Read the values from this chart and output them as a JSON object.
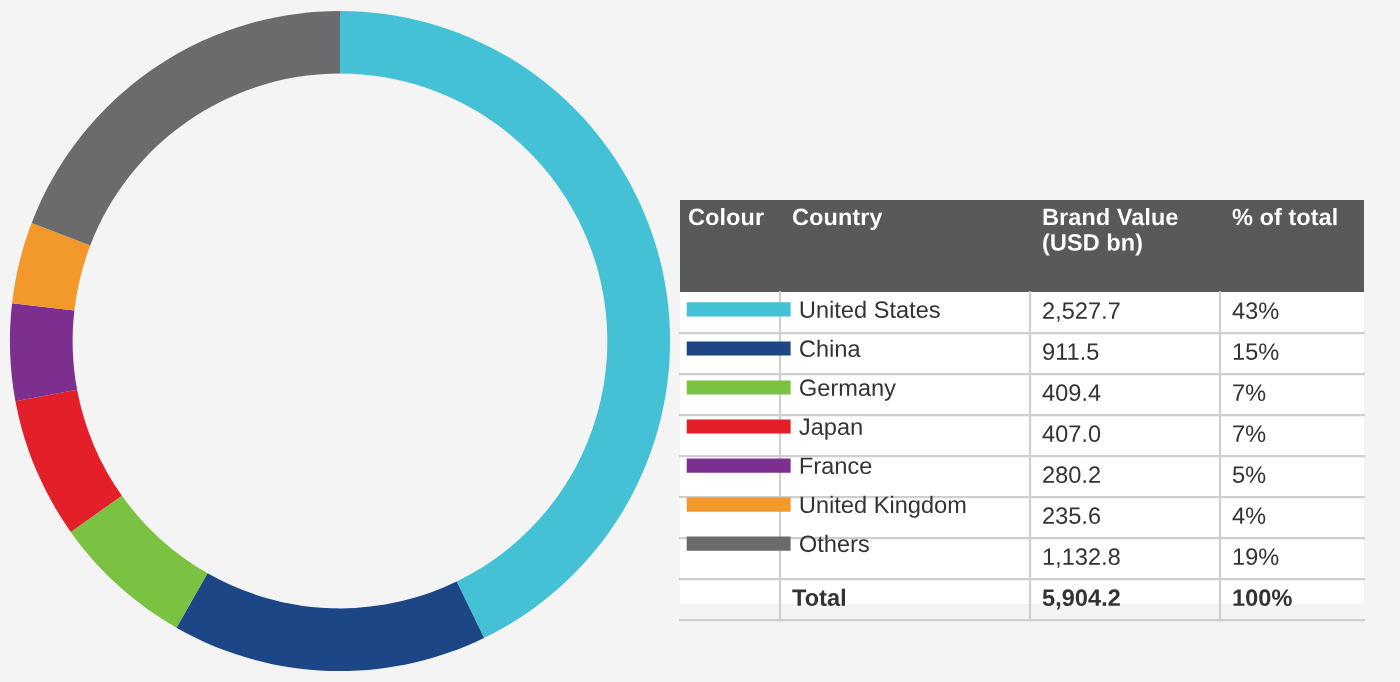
{
  "chart_data": {
    "type": "donut",
    "categories": [
      "United States",
      "China",
      "Germany",
      "Japan",
      "France",
      "United Kingdom",
      "Others"
    ],
    "values": [
      2527.7,
      911.5,
      409.4,
      407.0,
      280.2,
      235.6,
      1132.8
    ],
    "value_labels": [
      "2,527.7",
      "911.5",
      "409.4",
      "407.0",
      "280.2",
      "235.6",
      "1,132.8"
    ],
    "colors": [
      "#45c1d5",
      "#1d4687",
      "#7cc242",
      "#e3202a",
      "#7d2f8f",
      "#f3982a",
      "#6a6b6d"
    ],
    "legend": "right",
    "annotations": [
      "Colour",
      "Country",
      "Brand Value (USD bn)",
      "% of total",
      "43%",
      "15%",
      "7%",
      "7%",
      "5%",
      "4%",
      "19%",
      "Total",
      "5,904.2",
      "100%"
    ]
  }
}
